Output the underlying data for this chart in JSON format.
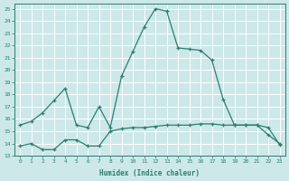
{
  "line1_x": [
    0,
    1,
    2,
    3,
    4,
    5,
    6,
    7,
    8,
    9,
    10,
    11,
    12,
    13,
    14,
    15,
    16,
    17,
    18,
    19,
    20,
    21,
    22,
    23
  ],
  "line1_y": [
    15.5,
    15.8,
    16.5,
    17.5,
    18.5,
    15.5,
    15.3,
    17.0,
    15.3,
    19.5,
    21.5,
    23.5,
    25.0,
    24.8,
    21.8,
    21.7,
    21.6,
    20.8,
    17.6,
    15.5,
    15.5,
    15.5,
    14.7,
    14.0
  ],
  "line2_x": [
    0,
    1,
    2,
    3,
    4,
    5,
    6,
    7,
    8,
    9,
    10,
    11,
    12,
    13,
    14,
    15,
    16,
    17,
    18,
    19,
    20,
    21,
    22,
    23
  ],
  "line2_y": [
    13.8,
    14.0,
    13.5,
    13.5,
    14.3,
    14.3,
    13.8,
    13.8,
    15.0,
    15.2,
    15.3,
    15.3,
    15.4,
    15.5,
    15.5,
    15.5,
    15.6,
    15.6,
    15.5,
    15.5,
    15.5,
    15.5,
    15.3,
    13.9
  ],
  "line_color": "#2e7d6e",
  "bg_color": "#cce8e8",
  "grid_color": "#ffffff",
  "xlabel": "Humidex (Indice chaleur)",
  "ylim": [
    13,
    25.4
  ],
  "xlim": [
    -0.5,
    23.5
  ],
  "yticks": [
    13,
    14,
    15,
    16,
    17,
    18,
    19,
    20,
    21,
    22,
    23,
    24,
    25
  ],
  "xticks": [
    0,
    1,
    2,
    3,
    4,
    5,
    6,
    7,
    8,
    9,
    10,
    11,
    12,
    13,
    14,
    15,
    16,
    17,
    18,
    19,
    20,
    21,
    22,
    23
  ],
  "tick_fontsize": 4.5,
  "xlabel_fontsize": 5.5
}
